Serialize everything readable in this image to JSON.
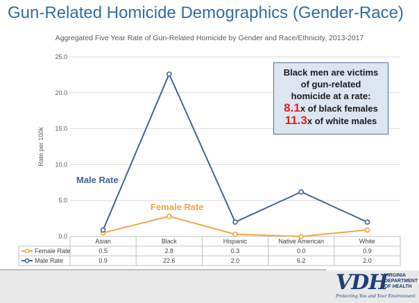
{
  "slide": {
    "title": "Gun-Related Homicide Demographics (Gender-Race)"
  },
  "callout": {
    "line1": "Black men are victims",
    "line2": "of gun-related",
    "line3": "homicide at a rate:",
    "ratio1_value": "8.1",
    "ratio1_text": "x of black females",
    "ratio2_value": "11.3",
    "ratio2_text": "x of white males"
  },
  "logo": {
    "mark": "VDH",
    "name": "VIRGINIA\nDEPARTMENT\nOF HEALTH",
    "tagline": "Protecting You and Your Environment"
  },
  "chart_data": {
    "type": "line",
    "title": "Aggregated Five Year Rate of Gun-Related Homicide by Gender and Race/Ethnicity, 2013-2017",
    "ylabel": "Rate per 100k",
    "xlabel": "",
    "ylim": [
      0,
      25
    ],
    "yticks": [
      "0.0",
      "5.0",
      "10.0",
      "15.0",
      "20.0",
      "25.0"
    ],
    "grid": true,
    "categories": [
      "Asian",
      "Black",
      "Hispanic",
      "Native American",
      "White"
    ],
    "series": [
      {
        "name": "Female Rate",
        "color": "#f2a541",
        "values": [
          0.5,
          2.8,
          0.3,
          0.0,
          0.9
        ],
        "labels": [
          "0.5",
          "2.8",
          "0.3",
          "0.0",
          "0.9"
        ]
      },
      {
        "name": "Male Rate",
        "color": "#3d6496",
        "values": [
          0.9,
          22.6,
          2.0,
          6.2,
          2.0
        ],
        "labels": [
          "0.9",
          "22.6",
          "2.0",
          "6.2",
          "2.0"
        ]
      }
    ],
    "annotations": [
      {
        "series": "Male Rate",
        "text": "Male Rate",
        "color": "#3d6496"
      },
      {
        "series": "Female Rate",
        "text": "Female Rate",
        "color": "#f2a541"
      }
    ]
  }
}
